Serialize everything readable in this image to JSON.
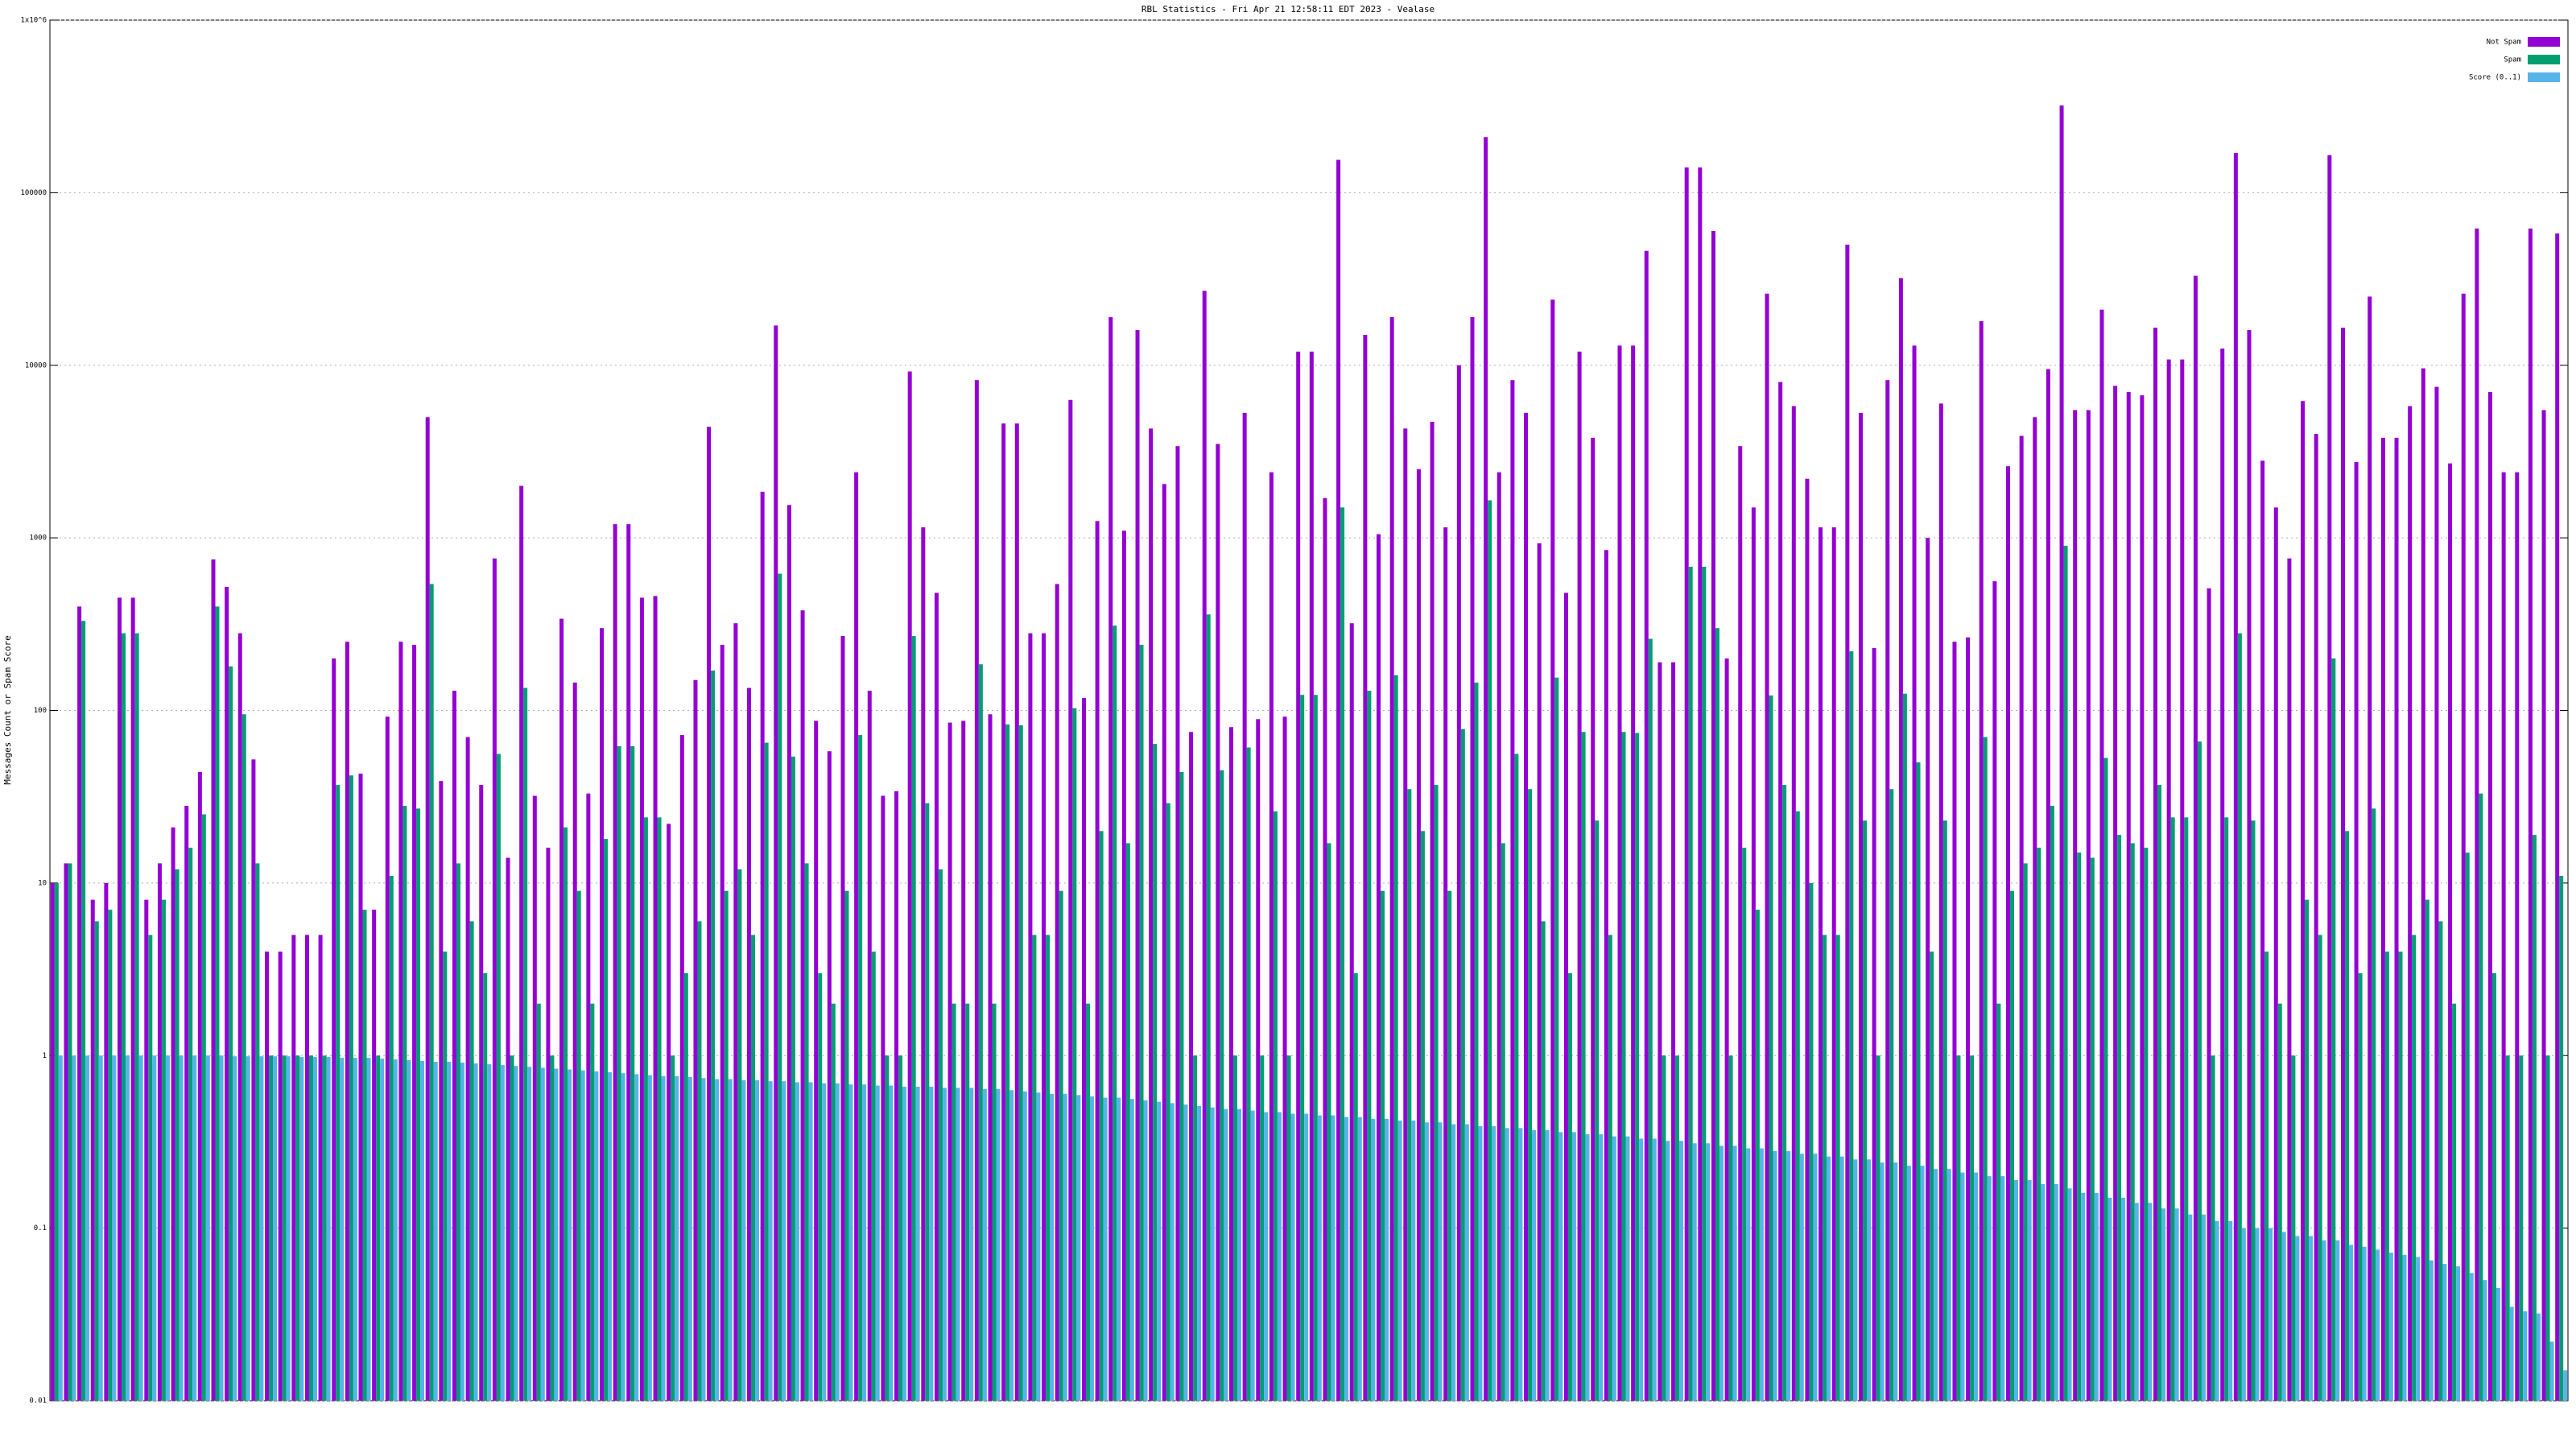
{
  "chart_data": {
    "type": "bar",
    "title": "RBL Statistics - Fri Apr 21 12:58:11 EDT 2023 - Vealase",
    "y_label": "Messages Count or Spam Score",
    "log_scale": true,
    "grid": true,
    "legend_position": "top-right",
    "ylim": [
      0.01,
      1000000
    ],
    "yticks": [
      0.01,
      0.1,
      1,
      10,
      100,
      1000,
      10000,
      100000,
      {
        "value": 1000000,
        "label": "1x10^6"
      }
    ],
    "categories": [
      null,
      null,
      null,
      null,
      null,
      null,
      null,
      null,
      null,
      null,
      null,
      null,
      null,
      null,
      null,
      null,
      null,
      null,
      null,
      null,
      null,
      null,
      null,
      null,
      null,
      null,
      null,
      null,
      null,
      null,
      null,
      null,
      null,
      null,
      null,
      null,
      null,
      null,
      null,
      null,
      null,
      null,
      null,
      null,
      null,
      null,
      null,
      null,
      null,
      null,
      null,
      null,
      null,
      null,
      null,
      null,
      null,
      null,
      null,
      null,
      null,
      null,
      null,
      null,
      null,
      null,
      null,
      null,
      null,
      null,
      null,
      null,
      null,
      null,
      null,
      null,
      null,
      null,
      null,
      null,
      null,
      null,
      null,
      null,
      null,
      null,
      null,
      null,
      null,
      null,
      null,
      null,
      null,
      null,
      null,
      null,
      null,
      null,
      null,
      null,
      null,
      null,
      null,
      null,
      null,
      null,
      null,
      null,
      null,
      null,
      null,
      null,
      null,
      null,
      null,
      null,
      null,
      null,
      null,
      null,
      null,
      null,
      null,
      null,
      null,
      null,
      null,
      null,
      null,
      null,
      null,
      null,
      null,
      null,
      null,
      null,
      null,
      null,
      null,
      null,
      null,
      null,
      null,
      null,
      null,
      null,
      null,
      null,
      null,
      null,
      null,
      null,
      null,
      null,
      null,
      null,
      null,
      null,
      null,
      null,
      null,
      null,
      null,
      null,
      null,
      null,
      null,
      null,
      null,
      null,
      null,
      null,
      null,
      null,
      null,
      null,
      null,
      null,
      null,
      null,
      null,
      null,
      null,
      null,
      null,
      null,
      null,
      null
    ],
    "series": [
      {
        "name": "Not Spam",
        "color": "#9400d3",
        "values": [
          10,
          13,
          400,
          8,
          10,
          450,
          450,
          8,
          13,
          21,
          28,
          44,
          750,
          520,
          280,
          52,
          4,
          4,
          5,
          5,
          5,
          200,
          250,
          43,
          7,
          92,
          250,
          240,
          5000,
          39,
          130,
          70,
          37,
          760,
          14,
          2000,
          32,
          16,
          340,
          145,
          33,
          300,
          1200,
          1200,
          450,
          460,
          22,
          72,
          150,
          4400,
          240,
          320,
          135,
          1850,
          17000,
          1550,
          380,
          87,
          58,
          270,
          2400,
          130,
          32,
          34,
          9200,
          1150,
          480,
          85,
          87,
          8200,
          95,
          4600,
          4600,
          280,
          280,
          540,
          6300,
          118,
          1250,
          19000,
          1100,
          16000,
          4300,
          2050,
          3400,
          75,
          27000,
          3500,
          80,
          5300,
          89,
          2400,
          92,
          12000,
          12000,
          1700,
          155000,
          320,
          15000,
          1050,
          19000,
          4300,
          2500,
          4700,
          1150,
          10000,
          19000,
          210000,
          2400,
          8200,
          5300,
          930,
          24000,
          480,
          12000,
          3800,
          850,
          13000,
          13000,
          46000,
          190,
          190,
          140000,
          140000,
          60000,
          200,
          3400,
          1500,
          26000,
          8000,
          5800,
          2200,
          1150,
          1150,
          50000,
          5300,
          230,
          8200,
          32000,
          13000,
          1000,
          6000,
          250,
          265,
          18000,
          560,
          2600,
          3900,
          5000,
          9500,
          320000,
          5500,
          5500,
          21000,
          7600,
          7000,
          6700,
          16500,
          10800,
          10800,
          33000,
          510,
          12500,
          170000,
          16000,
          2800,
          1500,
          760,
          6200,
          4000,
          165000,
          16500,
          2750,
          25000,
          3800,
          3800,
          5800,
          9600,
          7500,
          2700,
          26000,
          62000,
          7000,
          2400,
          2400,
          62000,
          5500,
          58000
        ]
      },
      {
        "name": "Spam",
        "color": "#009e73",
        "values": [
          10,
          13,
          330,
          6,
          7,
          280,
          280,
          5,
          8,
          12,
          16,
          25,
          400,
          180,
          95,
          13,
          1,
          1,
          1,
          1,
          1,
          37,
          42,
          7,
          1,
          11,
          28,
          27,
          540,
          4,
          13,
          6,
          3,
          56,
          1,
          135,
          2,
          1,
          21,
          9,
          2,
          18,
          62,
          62,
          24,
          24,
          1,
          3,
          6,
          170,
          9,
          12,
          5,
          65,
          620,
          54,
          13,
          3,
          2,
          9,
          72,
          4,
          1,
          1,
          270,
          29,
          12,
          2,
          2,
          185,
          2,
          83,
          82,
          5,
          5,
          9,
          103,
          2,
          20,
          310,
          17,
          240,
          64,
          29,
          44,
          1,
          360,
          45,
          1,
          61,
          1,
          26,
          1,
          123,
          123,
          17,
          1500,
          3,
          130,
          9,
          160,
          35,
          20,
          37,
          9,
          78,
          145,
          1650,
          17,
          56,
          35,
          6,
          155,
          3,
          75,
          23,
          5,
          75,
          74,
          260,
          1,
          1,
          680,
          680,
          300,
          1,
          16,
          7,
          122,
          37,
          26,
          10,
          5,
          5,
          220,
          23,
          1,
          35,
          125,
          50,
          4,
          23,
          1,
          1,
          70,
          2,
          9,
          13,
          16,
          28,
          900,
          15,
          14,
          53,
          19,
          17,
          16,
          37,
          24,
          24,
          66,
          1,
          24,
          280,
          23,
          4,
          2,
          1,
          8,
          5,
          200,
          20,
          3,
          27,
          4,
          4,
          5,
          8,
          6,
          2,
          15,
          33,
          3,
          1,
          1,
          19,
          1,
          11
        ]
      },
      {
        "name": "Score (0..1)",
        "color": "#56b4e9",
        "values": [
          1,
          1,
          1,
          1,
          1,
          1,
          1,
          1,
          1,
          1,
          1,
          1,
          1,
          0.99,
          0.99,
          0.99,
          0.99,
          0.99,
          0.98,
          0.98,
          0.98,
          0.97,
          0.97,
          0.97,
          0.96,
          0.95,
          0.94,
          0.93,
          0.92,
          0.92,
          0.91,
          0.9,
          0.89,
          0.88,
          0.87,
          0.86,
          0.85,
          0.84,
          0.83,
          0.82,
          0.81,
          0.8,
          0.79,
          0.78,
          0.77,
          0.76,
          0.76,
          0.75,
          0.74,
          0.73,
          0.73,
          0.72,
          0.72,
          0.71,
          0.71,
          0.7,
          0.7,
          0.69,
          0.69,
          0.68,
          0.68,
          0.67,
          0.67,
          0.66,
          0.66,
          0.66,
          0.65,
          0.65,
          0.65,
          0.64,
          0.64,
          0.63,
          0.62,
          0.61,
          0.6,
          0.6,
          0.59,
          0.58,
          0.57,
          0.57,
          0.56,
          0.55,
          0.54,
          0.53,
          0.52,
          0.51,
          0.5,
          0.49,
          0.49,
          0.48,
          0.47,
          0.47,
          0.46,
          0.46,
          0.45,
          0.45,
          0.44,
          0.44,
          0.43,
          0.43,
          0.42,
          0.42,
          0.41,
          0.41,
          0.4,
          0.4,
          0.39,
          0.39,
          0.38,
          0.38,
          0.37,
          0.37,
          0.36,
          0.36,
          0.35,
          0.35,
          0.34,
          0.34,
          0.33,
          0.33,
          0.32,
          0.32,
          0.31,
          0.31,
          0.3,
          0.3,
          0.29,
          0.29,
          0.28,
          0.28,
          0.27,
          0.27,
          0.26,
          0.26,
          0.25,
          0.25,
          0.24,
          0.24,
          0.23,
          0.23,
          0.22,
          0.22,
          0.21,
          0.21,
          0.2,
          0.2,
          0.19,
          0.19,
          0.18,
          0.18,
          0.17,
          0.16,
          0.16,
          0.15,
          0.15,
          0.14,
          0.14,
          0.13,
          0.13,
          0.12,
          0.12,
          0.11,
          0.11,
          0.1,
          0.1,
          0.1,
          0.095,
          0.09,
          0.09,
          0.085,
          0.085,
          0.08,
          0.078,
          0.075,
          0.072,
          0.07,
          0.068,
          0.065,
          0.062,
          0.06,
          0.055,
          0.05,
          0.045,
          0.035,
          0.033,
          0.032,
          0.022,
          0.015
        ]
      }
    ]
  }
}
